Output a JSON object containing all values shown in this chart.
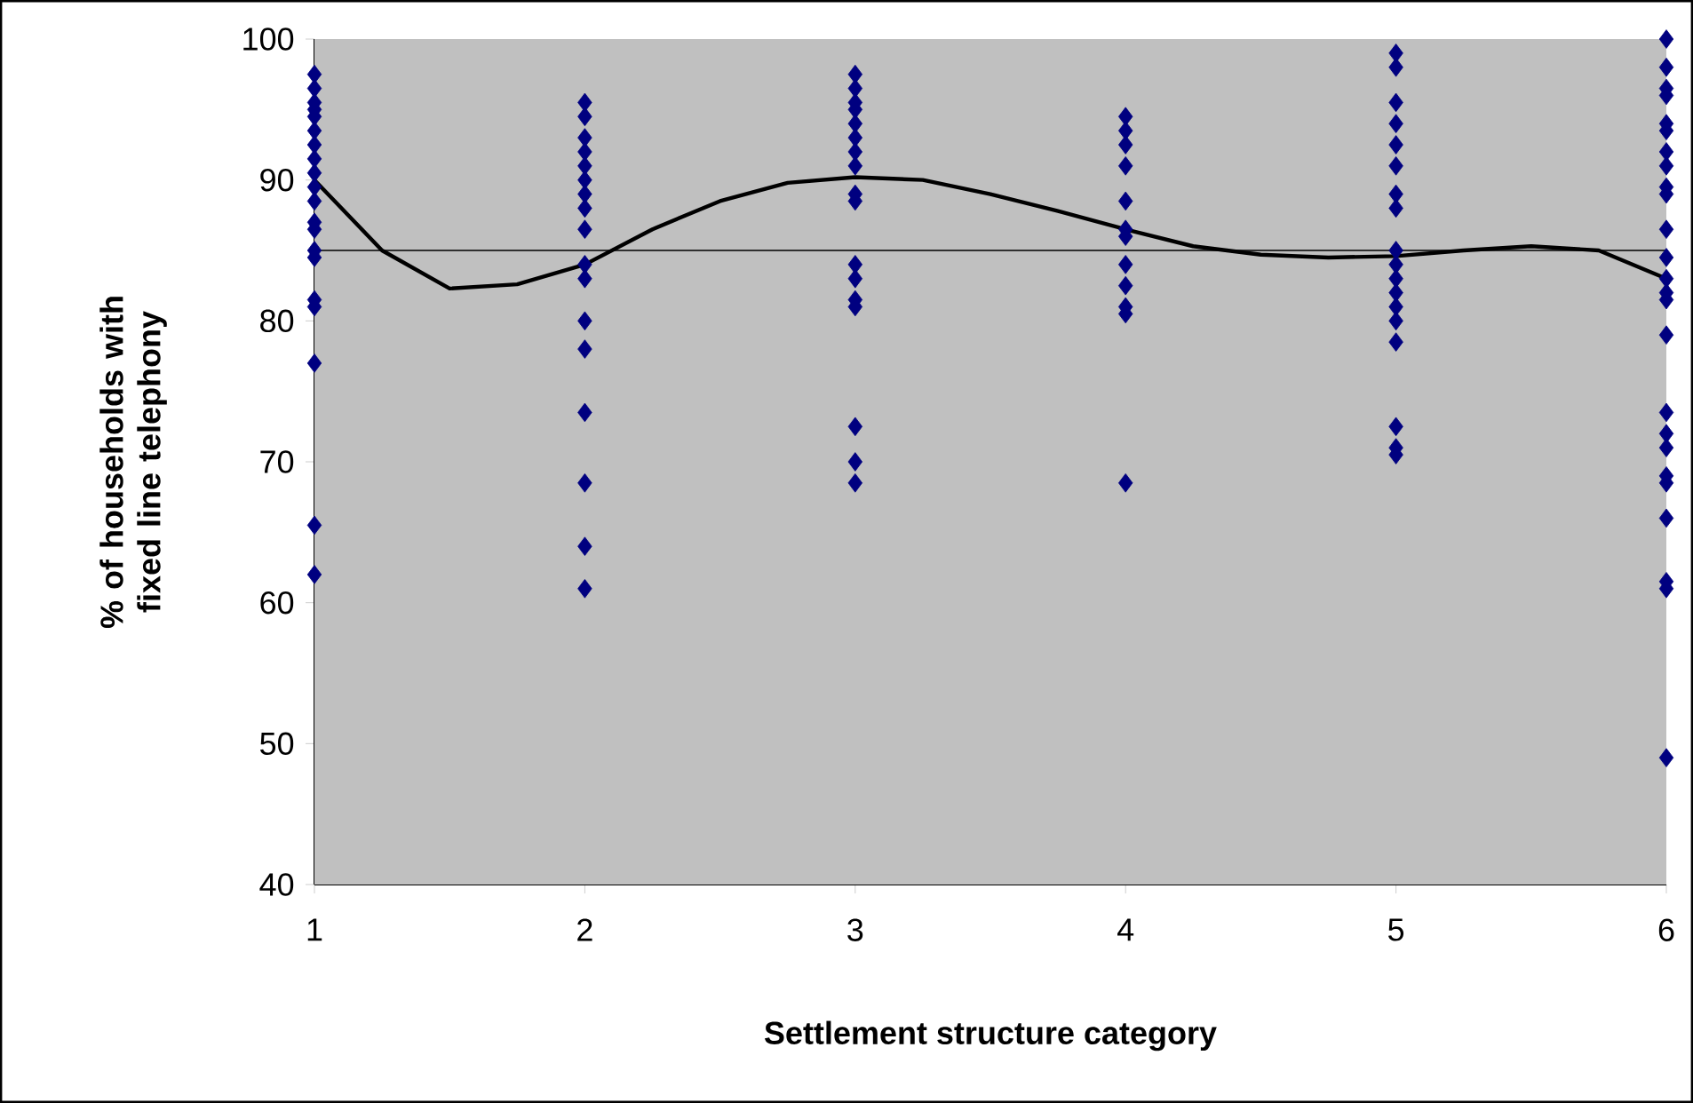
{
  "chart_data": {
    "type": "scatter",
    "xlabel": "Settlement structure category",
    "ylabel": "% of households with fixed line telephony",
    "xlim": [
      1,
      6
    ],
    "ylim": [
      40,
      100
    ],
    "xticks": [
      1,
      2,
      3,
      4,
      5,
      6
    ],
    "yticks": [
      40,
      50,
      60,
      70,
      80,
      90,
      100
    ],
    "marker": "diamond",
    "ref_lines": [
      {
        "axis": "y",
        "value": 85,
        "color": "#000000"
      }
    ],
    "series": [
      {
        "type": "scatter",
        "color": "#000080",
        "x": [
          1,
          1,
          1,
          1,
          1,
          1,
          1,
          1,
          1,
          1,
          1,
          1,
          1,
          1,
          1,
          1,
          1,
          1,
          1,
          1,
          2,
          2,
          2,
          2,
          2,
          2,
          2,
          2,
          2,
          2,
          2,
          2,
          2,
          2,
          2,
          2,
          2,
          3,
          3,
          3,
          3,
          3,
          3,
          3,
          3,
          3,
          3,
          3,
          3,
          3,
          3,
          3,
          3,
          3,
          4,
          4,
          4,
          4,
          4,
          4,
          4,
          4,
          4,
          4,
          4,
          4,
          5,
          5,
          5,
          5,
          5,
          5,
          5,
          5,
          5,
          5,
          5,
          5,
          5,
          5,
          5,
          5,
          5,
          5,
          6,
          6,
          6,
          6,
          6,
          6,
          6,
          6,
          6,
          6,
          6,
          6,
          6,
          6,
          6,
          6,
          6,
          6,
          6,
          6,
          6,
          6,
          6,
          6,
          6
        ],
        "values": [
          97.5,
          96.5,
          95.5,
          95,
          94.5,
          93.5,
          92.5,
          91.5,
          90.5,
          89.5,
          88.5,
          87,
          86.5,
          85,
          84.5,
          81.5,
          81,
          77,
          65.5,
          62,
          95.5,
          94.5,
          93,
          92,
          91,
          90,
          89,
          88,
          86.5,
          84,
          83,
          80,
          78,
          73.5,
          68.5,
          64,
          61,
          97.5,
          96.5,
          95.5,
          95,
          94,
          93,
          92,
          91,
          89,
          88.5,
          84,
          83,
          81.5,
          81,
          72.5,
          70,
          68.5,
          94.5,
          93.5,
          92.5,
          91,
          88.5,
          86.5,
          86,
          84,
          82.5,
          81,
          80.5,
          68.5,
          99,
          98,
          95.5,
          94,
          92.5,
          91,
          89,
          88,
          85,
          84,
          83,
          82,
          81,
          80,
          78.5,
          72.5,
          71,
          70.5,
          100,
          98,
          96.5,
          96,
          94,
          93.5,
          92,
          91,
          89.5,
          89,
          86.5,
          84.5,
          83,
          82,
          81.5,
          79,
          73.5,
          72,
          71,
          69,
          68.5,
          66,
          61.5,
          61,
          49
        ]
      },
      {
        "type": "line",
        "color": "#000000",
        "marker": "none",
        "x": [
          1,
          1.25,
          1.5,
          1.75,
          2,
          2.25,
          2.5,
          2.75,
          3,
          3.25,
          3.5,
          3.75,
          4,
          4.25,
          4.5,
          4.75,
          5,
          5.25,
          5.5,
          5.75,
          6
        ],
        "values": [
          90,
          85,
          82.3,
          82.6,
          84,
          86.5,
          88.5,
          89.8,
          90.2,
          90,
          89,
          87.8,
          86.5,
          85.3,
          84.7,
          84.5,
          84.6,
          85,
          85.3,
          85,
          83
        ]
      }
    ]
  }
}
